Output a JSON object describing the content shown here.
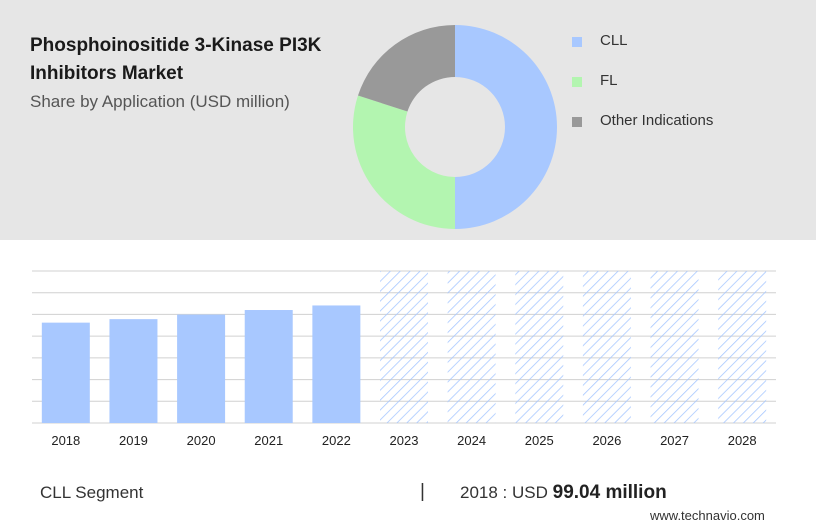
{
  "title_line1": "Phosphoinositide 3-Kinase PI3K",
  "title_line2": "Inhibitors Market",
  "subtitle": "Share by Application (USD million)",
  "segment_label": "CLL Segment",
  "divider": "|",
  "summary": {
    "prefix": "2018 : USD",
    "value": "99.04 million"
  },
  "watermark": "www.technavio.com",
  "colors": {
    "cll": "#a8c8ff",
    "fl": "#b3f5b0",
    "other": "#999999",
    "hatch": "#a8c8ff",
    "grid": "#d0d0d0"
  },
  "chart_data": [
    {
      "type": "pie",
      "variant": "donut",
      "slices": [
        {
          "name": "CLL",
          "value": 50
        },
        {
          "name": "FL",
          "value": 30
        },
        {
          "name": "Other Indications",
          "value": 20
        }
      ],
      "legend": [
        "CLL",
        "FL",
        "Other Indications"
      ],
      "legend_placement": "right"
    },
    {
      "type": "bar",
      "categories": [
        "2018",
        "2019",
        "2020",
        "2021",
        "2022",
        "2023",
        "2024",
        "2025",
        "2026",
        "2027",
        "2028"
      ],
      "values": [
        99.04,
        102.5,
        107,
        111.5,
        116,
        null,
        null,
        null,
        null,
        null,
        null
      ],
      "forecast_categories": [
        "2023",
        "2024",
        "2025",
        "2026",
        "2027",
        "2028"
      ],
      "ylim": [
        0,
        150
      ],
      "grid": true
    }
  ]
}
